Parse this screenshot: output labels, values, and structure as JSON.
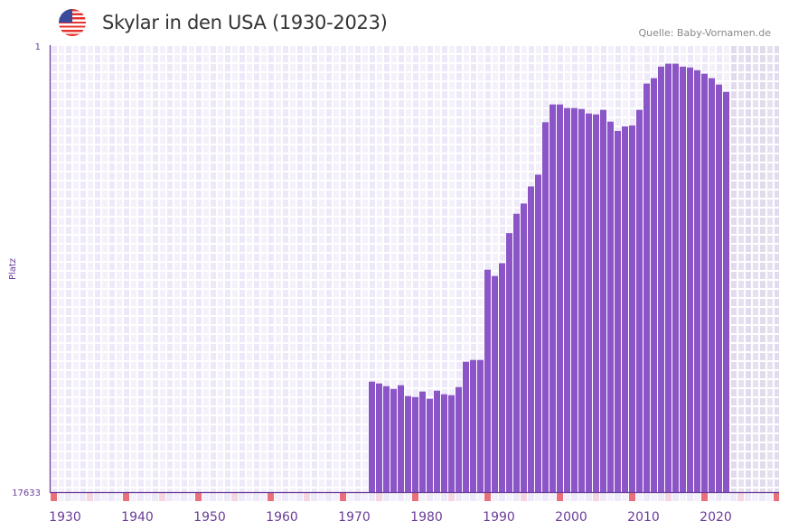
{
  "header": {
    "title": "Skylar in den USA (1930-2023)",
    "source": "Quelle: Baby-Vornamen.de",
    "flag_icon": "us-flag-icon"
  },
  "colors": {
    "bar": "#8b55c8",
    "axis": "#6a3d9a",
    "decade_marker": "#e9707a",
    "half_decade_marker": "#f5d5e0",
    "future_shade": "#e3ddef"
  },
  "chart_data": {
    "type": "bar",
    "title": "Skylar in den USA (1930-2023)",
    "ylabel": "Platz",
    "xlabel": "",
    "y_scale": "log-inverted",
    "ylim": [
      17633,
      1
    ],
    "y_ticks": [
      "1",
      "17633"
    ],
    "x_range": [
      1930,
      2030
    ],
    "x_ticks": [
      "1930",
      "1940",
      "1950",
      "1960",
      "1970",
      "1980",
      "1990",
      "2000",
      "2010",
      "2020"
    ],
    "future_from": 2024,
    "grid": true,
    "x": [
      1974,
      1975,
      1976,
      1977,
      1978,
      1979,
      1980,
      1981,
      1982,
      1983,
      1984,
      1985,
      1986,
      1987,
      1988,
      1989,
      1990,
      1991,
      1992,
      1993,
      1994,
      1995,
      1996,
      1997,
      1998,
      1999,
      2000,
      2001,
      2002,
      2003,
      2004,
      2005,
      2006,
      2007,
      2008,
      2009,
      2010,
      2011,
      2012,
      2013,
      2014,
      2015,
      2016,
      2017,
      2018,
      2019,
      2020,
      2021,
      2022,
      2023
    ],
    "values": [
      1575,
      1638,
      1738,
      1845,
      1703,
      2159,
      2203,
      1955,
      2291,
      1918,
      2075,
      2117,
      1774,
      1019,
      980,
      980,
      136,
      156,
      118,
      61,
      40,
      32,
      22,
      17,
      5.4,
      3.66,
      3.66,
      3.96,
      3.96,
      4.04,
      4.46,
      4.55,
      4.12,
      5.33,
      6.53,
      5.92,
      5.8,
      4.12,
      2.32,
      2.06,
      1.6,
      1.5,
      1.5,
      1.6,
      1.63,
      1.73,
      1.87,
      2.06,
      2.37,
      2.78
    ]
  }
}
